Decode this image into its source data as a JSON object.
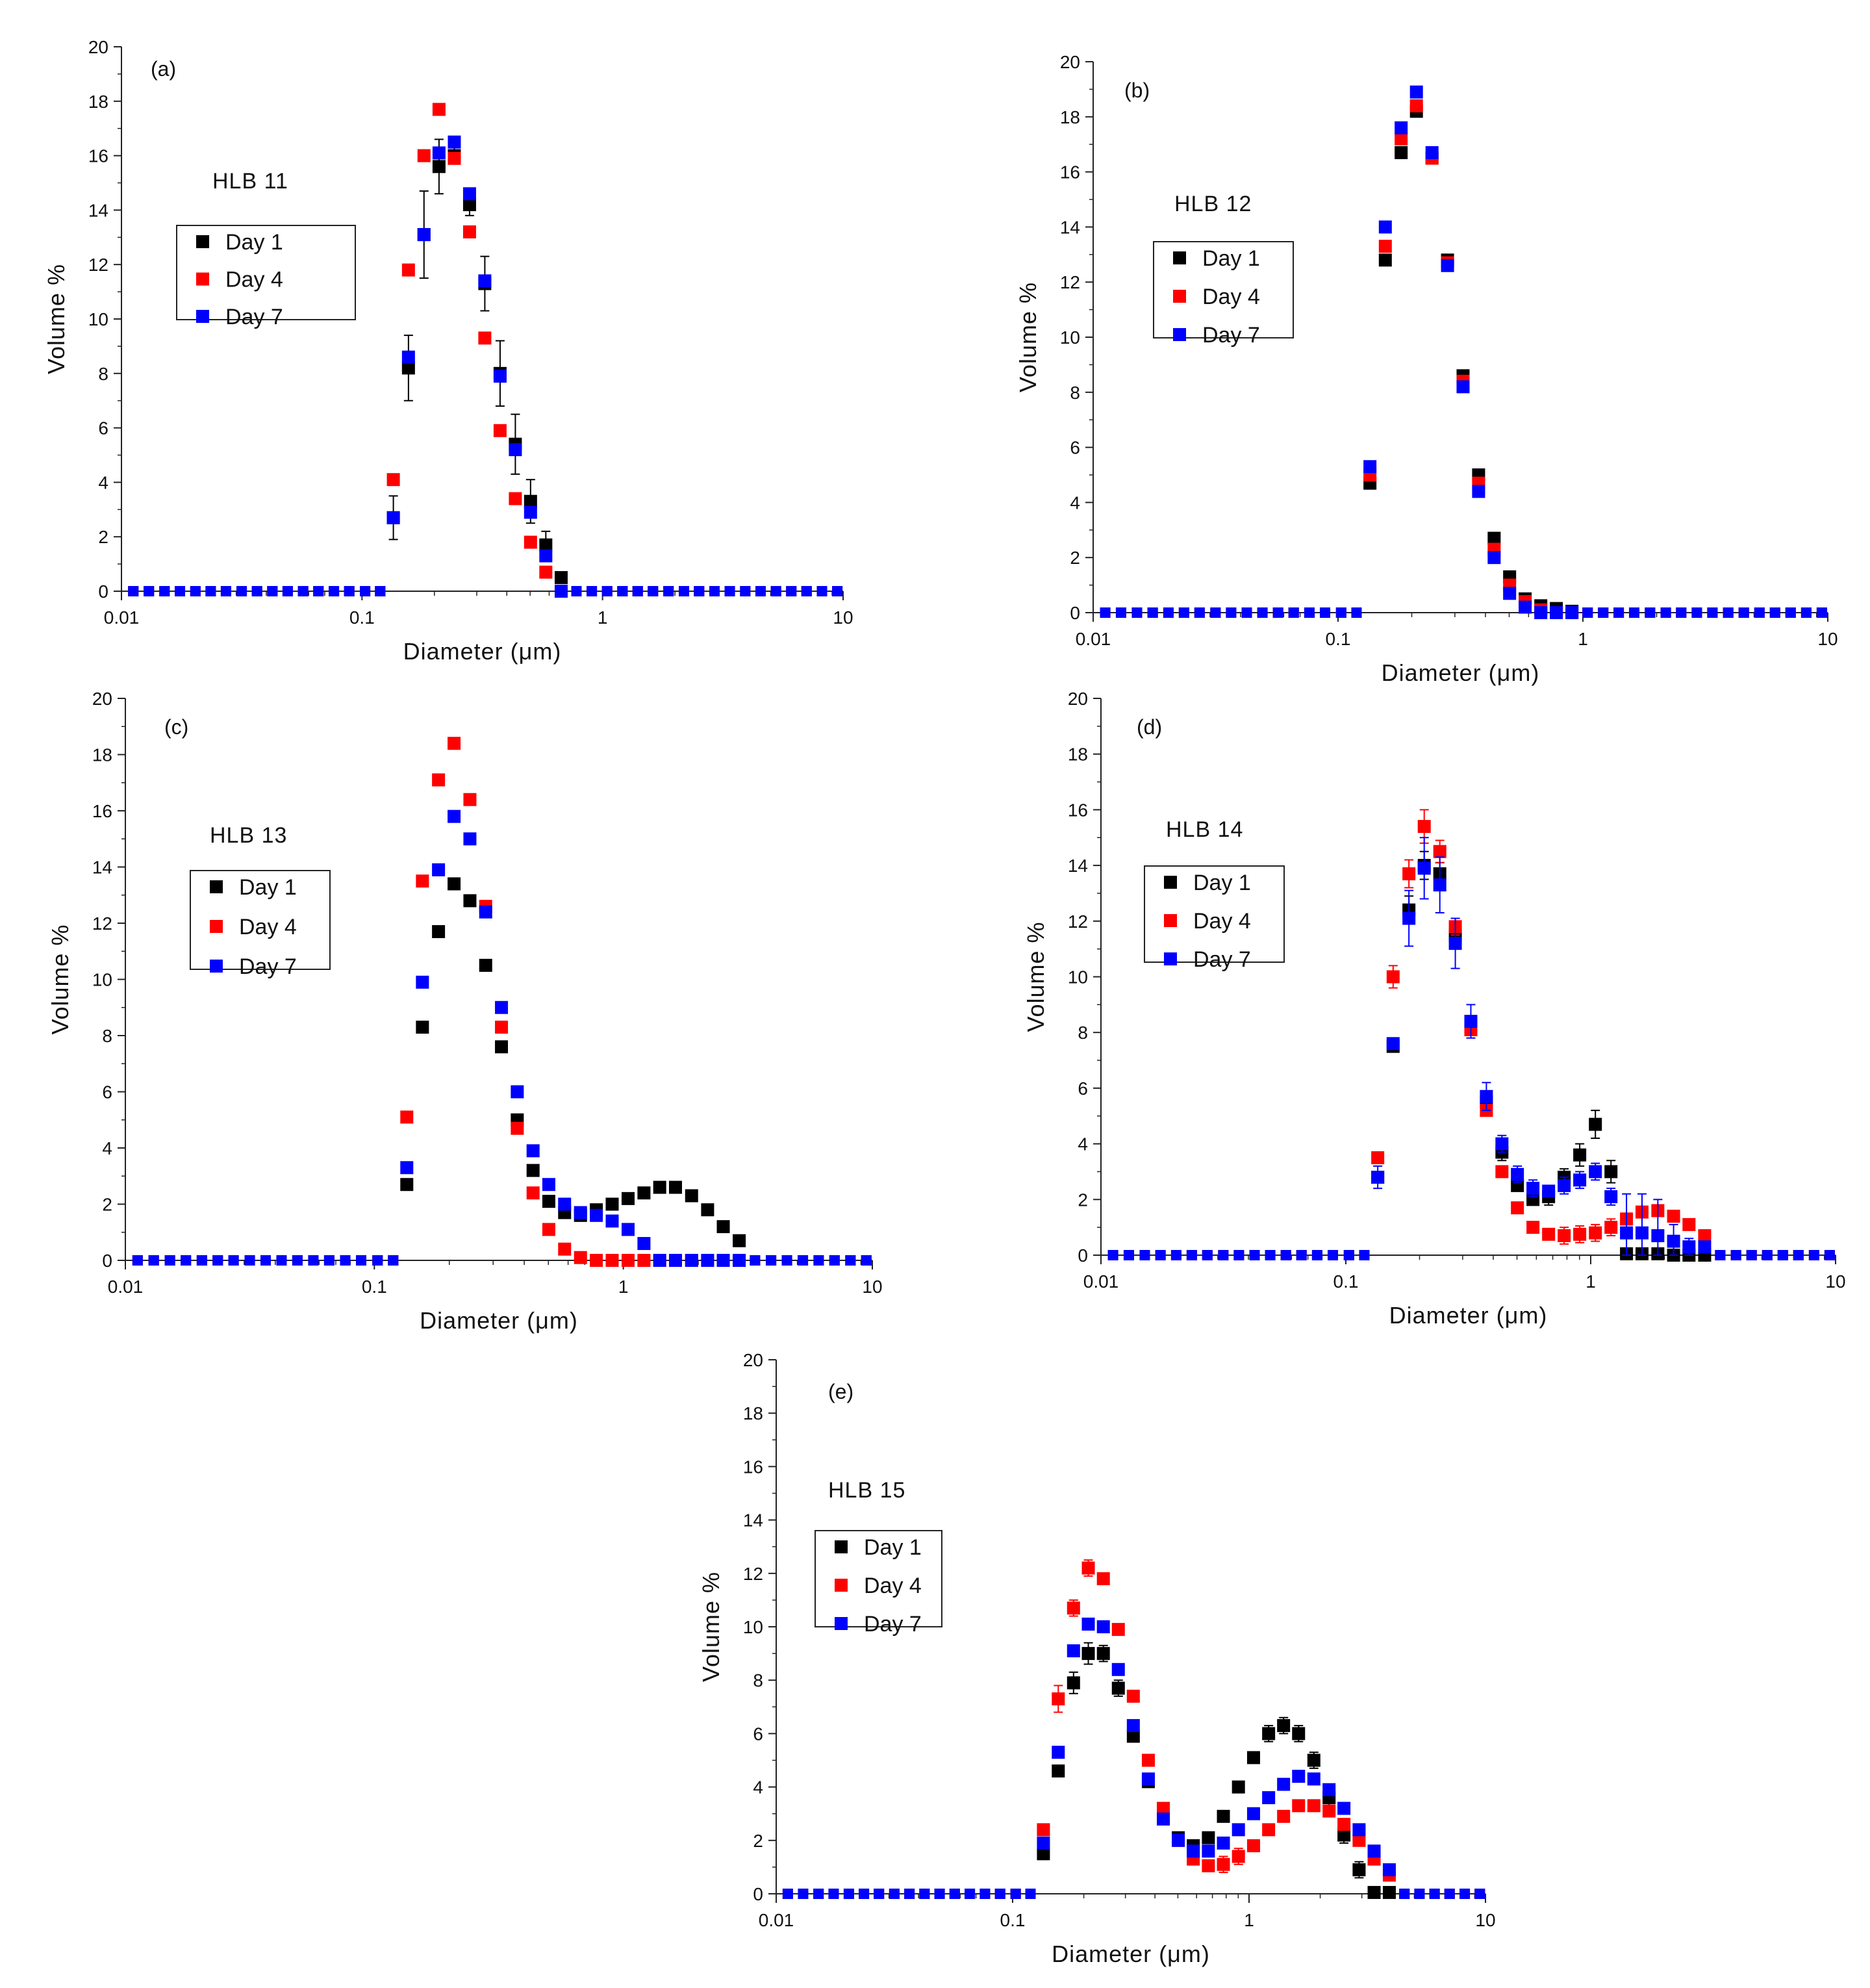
{
  "figure": {
    "xlabel": "Diameter (μm)",
    "ylabel": "Volume %",
    "colors": {
      "Day 1": "#000000",
      "Day 4": "#ff0000",
      "Day 7": "#0000ff"
    }
  },
  "chart_data": [
    {
      "id": "a",
      "type": "scatter",
      "panel_label": "(a)",
      "title": "HLB 11",
      "xscale": "log",
      "xlim": [
        0.01,
        10
      ],
      "ylim": [
        0,
        20
      ],
      "xticks": [
        "0.01",
        "0.1",
        "1",
        "10"
      ],
      "yticks": [
        "0",
        "2",
        "4",
        "6",
        "8",
        "10",
        "12",
        "14",
        "16",
        "18",
        "20"
      ],
      "xlabel": "Diameter (μm)",
      "ylabel": "Volume %",
      "legend": [
        "Day 1",
        "Day 4",
        "Day 7"
      ],
      "legend_placement": "upper-left",
      "x": [
        0.135,
        0.156,
        0.181,
        0.209,
        0.242,
        0.28,
        0.324,
        0.375,
        0.434,
        0.502,
        0.581,
        0.673
      ],
      "series": [
        {
          "name": "Day 1",
          "values": [
            2.7,
            8.2,
            13.1,
            15.6,
            16.0,
            14.2,
            11.3,
            8.0,
            5.4,
            3.3,
            1.7,
            0.5
          ],
          "errors": [
            0.8,
            1.2,
            1.6,
            1.0,
            0.3,
            0.4,
            1.0,
            1.2,
            1.1,
            0.8,
            0.5,
            0.2
          ]
        },
        {
          "name": "Day 4",
          "values": [
            4.1,
            11.8,
            16.0,
            17.7,
            15.9,
            13.2,
            9.3,
            5.9,
            3.4,
            1.8,
            0.7,
            0
          ]
        },
        {
          "name": "Day 7",
          "values": [
            2.7,
            8.6,
            13.1,
            16.1,
            16.5,
            14.6,
            11.4,
            7.9,
            5.2,
            2.9,
            1.3,
            0
          ]
        }
      ],
      "zero_x": [
        0.0112,
        0.013,
        0.0151,
        0.0175,
        0.0203,
        0.0235,
        0.0272,
        0.0316,
        0.0366,
        0.0424,
        0.0491,
        0.0569,
        0.0659,
        0.0764,
        0.0885,
        0.103,
        0.119,
        0.779,
        0.902,
        1.045,
        1.21,
        1.4,
        1.62,
        1.88,
        2.18,
        2.52,
        2.92,
        3.38,
        3.92,
        4.54,
        5.26,
        6.09,
        7.05,
        8.17,
        9.46
      ]
    },
    {
      "id": "b",
      "type": "scatter",
      "panel_label": "(b)",
      "title": "HLB 12",
      "xscale": "log",
      "xlim": [
        0.01,
        10
      ],
      "ylim": [
        0,
        20
      ],
      "xticks": [
        "0.01",
        "0.1",
        "1",
        "10"
      ],
      "yticks": [
        "0",
        "2",
        "4",
        "6",
        "8",
        "10",
        "12",
        "14",
        "16",
        "18",
        "20"
      ],
      "xlabel": "Diameter (μm)",
      "ylabel": "Volume %",
      "legend": [
        "Day 1",
        "Day 4",
        "Day 7"
      ],
      "legend_placement": "upper-left",
      "x": [
        0.135,
        0.156,
        0.181,
        0.209,
        0.242,
        0.28,
        0.324,
        0.375,
        0.434,
        0.502,
        0.581,
        0.673,
        0.779,
        0.902
      ],
      "series": [
        {
          "name": "Day 1",
          "values": [
            4.7,
            12.8,
            16.7,
            18.2,
            16.5,
            12.8,
            8.6,
            5.0,
            2.7,
            1.3,
            0.5,
            0.25,
            0.15,
            0.05
          ]
        },
        {
          "name": "Day 4",
          "values": [
            5.0,
            13.3,
            17.2,
            18.4,
            16.5,
            12.7,
            8.4,
            4.7,
            2.3,
            1.0,
            0.4,
            0.1,
            0,
            0
          ]
        },
        {
          "name": "Day 7",
          "values": [
            5.3,
            14.0,
            17.6,
            18.9,
            16.7,
            12.6,
            8.2,
            4.4,
            2.0,
            0.7,
            0.2,
            0,
            0,
            0
          ]
        }
      ],
      "zero_x": [
        0.0112,
        0.013,
        0.0151,
        0.0175,
        0.0203,
        0.0235,
        0.0272,
        0.0316,
        0.0366,
        0.0424,
        0.0491,
        0.0569,
        0.0659,
        0.0764,
        0.0885,
        0.103,
        0.119,
        1.045,
        1.21,
        1.4,
        1.62,
        1.88,
        2.18,
        2.52,
        2.92,
        3.38,
        3.92,
        4.54,
        5.26,
        6.09,
        7.05,
        8.17,
        9.46
      ]
    },
    {
      "id": "c",
      "type": "scatter",
      "panel_label": "(c)",
      "title": "HLB 13",
      "xscale": "log",
      "xlim": [
        0.01,
        10
      ],
      "ylim": [
        0,
        20
      ],
      "xticks": [
        "0.01",
        "0.1",
        "1",
        "10"
      ],
      "yticks": [
        "0",
        "2",
        "4",
        "6",
        "8",
        "10",
        "12",
        "14",
        "16",
        "18",
        "20"
      ],
      "xlabel": "Diameter (μm)",
      "ylabel": "Volume %",
      "legend": [
        "Day 1",
        "Day 4",
        "Day 7"
      ],
      "legend_placement": "upper-left",
      "x": [
        0.135,
        0.156,
        0.181,
        0.209,
        0.242,
        0.28,
        0.324,
        0.375,
        0.434,
        0.502,
        0.581,
        0.673,
        0.779,
        0.902,
        1.045,
        1.21,
        1.4,
        1.62,
        1.88,
        2.18,
        2.52,
        2.92
      ],
      "series": [
        {
          "name": "Day 1",
          "values": [
            2.7,
            8.3,
            11.7,
            13.4,
            12.8,
            10.5,
            7.6,
            5.0,
            3.2,
            2.1,
            1.7,
            1.6,
            1.8,
            2.0,
            2.2,
            2.4,
            2.6,
            2.6,
            2.3,
            1.8,
            1.2,
            0.7
          ]
        },
        {
          "name": "Day 4",
          "values": [
            5.1,
            13.5,
            17.1,
            18.4,
            16.4,
            12.6,
            8.3,
            4.7,
            2.4,
            1.1,
            0.4,
            0.1,
            0,
            0,
            0,
            0,
            0,
            0,
            0,
            0,
            0,
            0
          ]
        },
        {
          "name": "Day 7",
          "values": [
            3.3,
            9.9,
            13.9,
            15.8,
            15.0,
            12.4,
            9.0,
            6.0,
            3.9,
            2.7,
            2.0,
            1.7,
            1.6,
            1.4,
            1.1,
            0.6,
            0,
            0,
            0,
            0,
            0,
            0
          ]
        }
      ],
      "zero_x": [
        0.0112,
        0.013,
        0.0151,
        0.0175,
        0.0203,
        0.0235,
        0.0272,
        0.0316,
        0.0366,
        0.0424,
        0.0491,
        0.0569,
        0.0659,
        0.0764,
        0.0885,
        0.103,
        0.119,
        3.38,
        3.92,
        4.54,
        5.26,
        6.09,
        7.05,
        8.17,
        9.46
      ]
    },
    {
      "id": "d",
      "type": "scatter",
      "panel_label": "(d)",
      "title": "HLB 14",
      "xscale": "log",
      "xlim": [
        0.01,
        10
      ],
      "ylim": [
        0,
        20
      ],
      "xticks": [
        "0.01",
        "0.1",
        "1",
        "10"
      ],
      "yticks": [
        "0",
        "2",
        "4",
        "6",
        "8",
        "10",
        "12",
        "14",
        "16",
        "18",
        "20"
      ],
      "xlabel": "Diameter (μm)",
      "ylabel": "Volume %",
      "legend": [
        "Day 1",
        "Day 4",
        "Day 7"
      ],
      "legend_placement": "upper-left",
      "x": [
        0.135,
        0.156,
        0.181,
        0.209,
        0.242,
        0.28,
        0.324,
        0.375,
        0.434,
        0.502,
        0.581,
        0.673,
        0.779,
        0.902,
        1.045,
        1.21,
        1.4,
        1.62,
        1.88,
        2.18,
        2.52,
        2.92
      ],
      "series": [
        {
          "name": "Day 1",
          "values": [
            2.8,
            7.5,
            12.4,
            14.0,
            13.7,
            11.5,
            8.3,
            5.5,
            3.7,
            2.5,
            2.0,
            2.1,
            2.8,
            3.6,
            4.7,
            3.0,
            0.05,
            0.05,
            0.05,
            0,
            0,
            0
          ],
          "errors": [
            0.2,
            0.2,
            0.5,
            0.5,
            0.4,
            0.3,
            0.3,
            0.3,
            0.3,
            0.2,
            0.2,
            0.3,
            0.3,
            0.4,
            0.5,
            0.4,
            0,
            0,
            0,
            0,
            0,
            0
          ]
        },
        {
          "name": "Day 4",
          "values": [
            3.5,
            10.0,
            13.7,
            15.4,
            14.5,
            11.8,
            8.1,
            5.2,
            3.0,
            1.7,
            1.0,
            0.75,
            0.7,
            0.75,
            0.8,
            1.0,
            1.3,
            1.55,
            1.6,
            1.4,
            1.1,
            0.7
          ],
          "errors": [
            0.2,
            0.4,
            0.5,
            0.6,
            0.4,
            0.3,
            0.2,
            0.2,
            0.2,
            0.2,
            0.2,
            0.2,
            0.3,
            0.3,
            0.3,
            0.3,
            0.2,
            0.2,
            0.2,
            0.2,
            0.2,
            0.1
          ]
        },
        {
          "name": "Day 7",
          "values": [
            2.8,
            7.6,
            12.1,
            13.9,
            13.3,
            11.2,
            8.4,
            5.7,
            4.0,
            2.9,
            2.4,
            2.3,
            2.5,
            2.7,
            3.0,
            2.1,
            0.8,
            0.8,
            0.7,
            0.5,
            0.3,
            0.3
          ],
          "errors": [
            0.4,
            0.2,
            1.0,
            1.1,
            1.0,
            0.9,
            0.6,
            0.5,
            0.3,
            0.3,
            0.3,
            0.2,
            0.3,
            0.3,
            0.3,
            0.3,
            1.4,
            1.4,
            1.3,
            0.6,
            0.3,
            0.2
          ]
        }
      ],
      "zero_x": [
        0.0112,
        0.013,
        0.0151,
        0.0175,
        0.0203,
        0.0235,
        0.0272,
        0.0316,
        0.0366,
        0.0424,
        0.0491,
        0.0569,
        0.0659,
        0.0764,
        0.0885,
        0.103,
        0.119,
        3.38,
        3.92,
        4.54,
        5.26,
        6.09,
        7.05,
        8.17,
        9.46
      ]
    },
    {
      "id": "e",
      "type": "scatter",
      "panel_label": "(e)",
      "title": "HLB 15",
      "xscale": "log",
      "xlim": [
        0.01,
        10
      ],
      "ylim": [
        0,
        20
      ],
      "xticks": [
        "0.01",
        "0.1",
        "1",
        "10"
      ],
      "yticks": [
        "0",
        "2",
        "4",
        "6",
        "8",
        "10",
        "12",
        "14",
        "16",
        "18",
        "20"
      ],
      "xlabel": "Diameter (μm)",
      "ylabel": "Volume %",
      "legend": [
        "Day 1",
        "Day 4",
        "Day 7"
      ],
      "legend_placement": "upper-left",
      "x": [
        0.135,
        0.156,
        0.181,
        0.209,
        0.242,
        0.28,
        0.324,
        0.375,
        0.434,
        0.502,
        0.581,
        0.673,
        0.779,
        0.902,
        1.045,
        1.21,
        1.4,
        1.62,
        1.88,
        2.18,
        2.52,
        2.92,
        3.38,
        3.92
      ],
      "series": [
        {
          "name": "Day 1",
          "values": [
            1.5,
            4.6,
            7.9,
            9.0,
            9.0,
            7.7,
            5.9,
            4.2,
            2.9,
            2.1,
            1.8,
            2.1,
            2.9,
            4.0,
            5.1,
            6.0,
            6.3,
            6.0,
            5.0,
            3.6,
            2.2,
            0.9,
            0.05,
            0.05
          ],
          "errors": [
            0.2,
            0.2,
            0.4,
            0.4,
            0.3,
            0.3,
            0.2,
            0.2,
            0.2,
            0.2,
            0.2,
            0.2,
            0.2,
            0.2,
            0.2,
            0.3,
            0.3,
            0.3,
            0.3,
            0.3,
            0.3,
            0.3,
            0,
            0
          ]
        },
        {
          "name": "Day 4",
          "values": [
            2.4,
            7.3,
            10.7,
            12.2,
            11.8,
            9.9,
            7.4,
            5.0,
            3.2,
            2.0,
            1.3,
            1.05,
            1.1,
            1.4,
            1.8,
            2.4,
            2.9,
            3.3,
            3.3,
            3.1,
            2.6,
            2.0,
            1.3,
            0.7
          ],
          "errors": [
            0.2,
            0.5,
            0.3,
            0.3,
            0.2,
            0.2,
            0.2,
            0.2,
            0.2,
            0.2,
            0.2,
            0.2,
            0.3,
            0.3,
            0.2,
            0.2,
            0.2,
            0.2,
            0.2,
            0.2,
            0.2,
            0.2,
            0.2,
            0.2
          ]
        },
        {
          "name": "Day 7",
          "values": [
            1.9,
            5.3,
            9.1,
            10.1,
            10.0,
            8.4,
            6.3,
            4.3,
            2.8,
            2.0,
            1.6,
            1.6,
            1.9,
            2.4,
            3.0,
            3.6,
            4.1,
            4.4,
            4.3,
            3.9,
            3.2,
            2.4,
            1.6,
            0.9
          ]
        }
      ],
      "zero_x": [
        0.0112,
        0.013,
        0.0151,
        0.0175,
        0.0203,
        0.0235,
        0.0272,
        0.0316,
        0.0366,
        0.0424,
        0.0491,
        0.0569,
        0.0659,
        0.0764,
        0.0885,
        0.103,
        0.119,
        4.54,
        5.26,
        6.09,
        7.05,
        8.17,
        9.46
      ]
    }
  ]
}
